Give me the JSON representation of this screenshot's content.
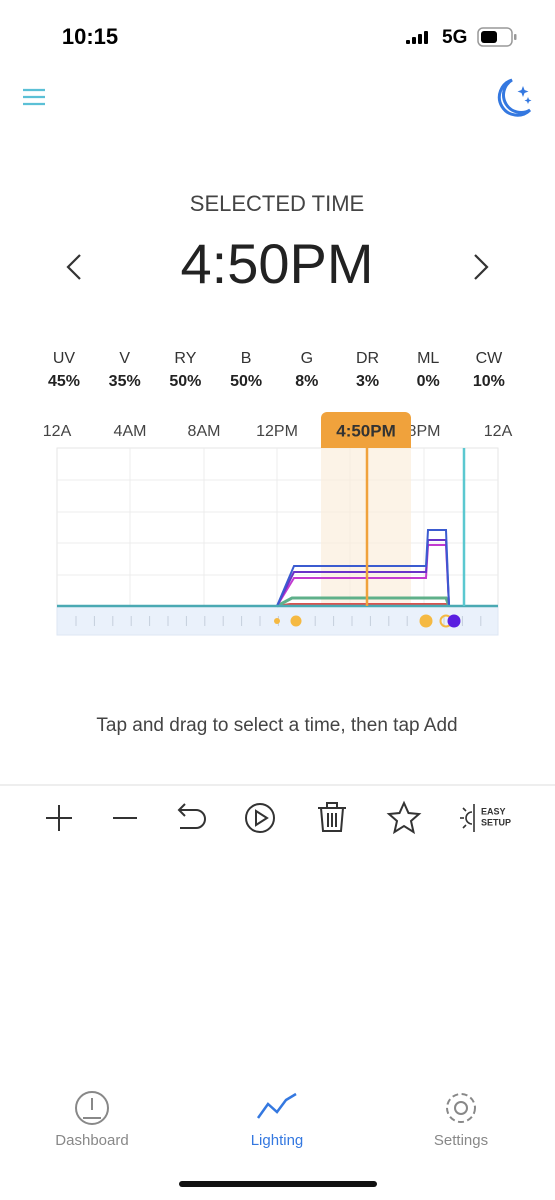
{
  "status_bar": {
    "time": "10:15",
    "network": "5G"
  },
  "header": {
    "label": "SELECTED TIME",
    "time": "4:50PM"
  },
  "channels": [
    {
      "name": "UV",
      "value": "45%"
    },
    {
      "name": "V",
      "value": "35%"
    },
    {
      "name": "RY",
      "value": "50%"
    },
    {
      "name": "B",
      "value": "50%"
    },
    {
      "name": "G",
      "value": "8%"
    },
    {
      "name": "DR",
      "value": "3%"
    },
    {
      "name": "ML",
      "value": "0%"
    },
    {
      "name": "CW",
      "value": "10%"
    }
  ],
  "timeline": {
    "labels": [
      "12A",
      "4AM",
      "8AM",
      "12PM",
      "8PM",
      "12A"
    ],
    "selected": "4:50PM"
  },
  "hint": "Tap and drag to select a time, then tap Add",
  "toolbar": {
    "easy_setup": [
      "EASY",
      "SETUP"
    ]
  },
  "tabs": [
    "Dashboard",
    "Lighting",
    "Settings"
  ]
}
